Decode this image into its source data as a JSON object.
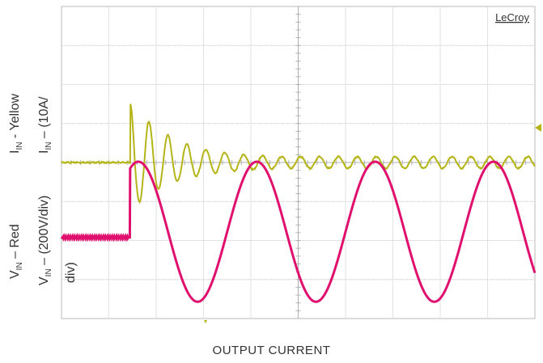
{
  "chart_data": {
    "type": "line",
    "title": "",
    "xlabel": "OUTPUT CURRENT",
    "brand": "LeCroy",
    "grid": true,
    "divisions": {
      "x": 10,
      "y": 8
    },
    "legend": "none",
    "series": [
      {
        "label_line1": "I",
        "label_sub1": "IN",
        "label_rest1": " - Yellow",
        "label_line2": "I",
        "label_sub2": "IN",
        "label_rest2": " – (10A/",
        "color": "#b5b51a",
        "scale_units": "10A/div",
        "baseline_div": 0.0,
        "event_div": 1.45,
        "ringing_freq_cycles_per_div": 2.5,
        "peaks_div": [
          1.52,
          1.04,
          0.7,
          0.47,
          0.33,
          0.25,
          0.2,
          0.17,
          0.15
        ],
        "troughs_div": [
          -1.2,
          -0.82,
          -0.55,
          -0.4,
          -0.3,
          -0.24,
          -0.2,
          -0.17,
          -0.15
        ]
      },
      {
        "label_line1": "V",
        "label_sub1": "IN",
        "label_rest1": " – Red",
        "label_line2": "V",
        "label_sub2": "IN",
        "label_rest2": " – (200V/div)",
        "label_line3": "div)",
        "color": "#e0106e",
        "scale_units": "200V/div",
        "baseline_div": -1.92,
        "event_div": 1.45,
        "cycles_per_div": 0.4,
        "peak_div": 0.02,
        "trough_div": -3.57
      }
    ]
  },
  "icons": {
    "trigger_marker": "trigger-marker-icon",
    "level_marker": "level-marker-icon"
  }
}
